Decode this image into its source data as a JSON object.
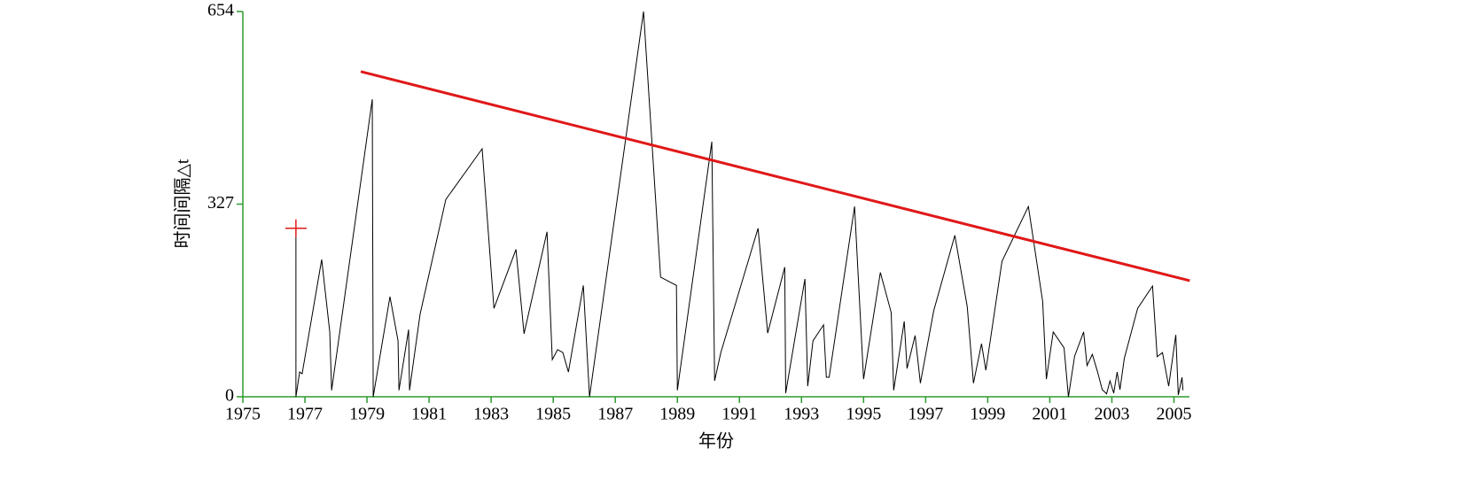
{
  "chart_data": {
    "type": "line",
    "xlabel": "年份",
    "ylabel": "时间间隔△t",
    "xlim": [
      1975,
      2005.5
    ],
    "ylim": [
      0,
      654
    ],
    "xticks": [
      1975,
      1977,
      1979,
      1981,
      1983,
      1985,
      1987,
      1989,
      1991,
      1993,
      1995,
      1997,
      1999,
      2001,
      2003,
      2005
    ],
    "yticks": [
      0,
      327,
      654
    ],
    "axis_color": "#2e9b2e",
    "series": [
      {
        "color": "#000000",
        "width": 1,
        "marker": "none",
        "x": [
          1976.71,
          1976.71,
          1976.83,
          1976.91,
          1977.54,
          1977.8,
          1977.86,
          1979.17,
          1979.2,
          1979.74,
          1980.0,
          1980.03,
          1980.34,
          1980.37,
          1980.71,
          1981.54,
          1982.71,
          1983.09,
          1983.8,
          1984.06,
          1984.8,
          1984.97,
          1985.14,
          1985.31,
          1985.49,
          1985.97,
          1986.17,
          1987.91,
          1988.46,
          1988.97,
          1989.0,
          1990.11,
          1990.2,
          1990.4,
          1991.6,
          1991.91,
          1992.46,
          1992.49,
          1993.11,
          1993.2,
          1993.37,
          1993.71,
          1993.8,
          1993.89,
          1994.71,
          1995.0,
          1995.54,
          1995.89,
          1995.97,
          1996.31,
          1996.4,
          1996.66,
          1996.83,
          1997.26,
          1997.94,
          1998.34,
          1998.54,
          1998.8,
          1998.94,
          1999.46,
          2000.31,
          2000.77,
          2000.89,
          2001.11,
          2001.46,
          2001.6,
          2001.8,
          2002.09,
          2002.2,
          2002.37,
          2002.54,
          2002.69,
          2002.83,
          2002.94,
          2003.06,
          2003.17,
          2003.26,
          2003.4,
          2003.83,
          2004.31,
          2004.46,
          2004.63,
          2004.83,
          2005.06,
          2005.14,
          2005.26,
          2005.29
        ],
        "values": [
          271,
          0,
          42,
          39,
          233,
          110,
          11,
          505,
          0,
          170,
          95,
          11,
          114,
          11,
          140,
          335,
          421,
          150,
          250,
          107,
          280,
          63,
          80,
          75,
          42,
          189,
          0,
          654,
          203,
          189,
          11,
          433,
          27,
          75,
          286,
          108,
          220,
          6,
          200,
          18,
          95,
          122,
          33,
          33,
          323,
          30,
          211,
          143,
          11,
          128,
          48,
          104,
          23,
          146,
          274,
          153,
          23,
          90,
          45,
          230,
          323,
          162,
          30,
          110,
          83,
          0,
          69,
          110,
          53,
          72,
          42,
          12,
          5,
          27,
          6,
          42,
          12,
          65,
          150,
          188,
          68,
          75,
          18,
          105,
          3,
          33,
          11
        ]
      },
      {
        "color": "#e01818",
        "width": 3,
        "marker": "none",
        "x": [
          1978.8,
          2005.51
        ],
        "values": [
          552,
          197
        ]
      },
      {
        "color": "#e01818",
        "width": 1,
        "marker": "+",
        "x": [
          1976.71
        ],
        "values": [
          286
        ]
      }
    ]
  }
}
